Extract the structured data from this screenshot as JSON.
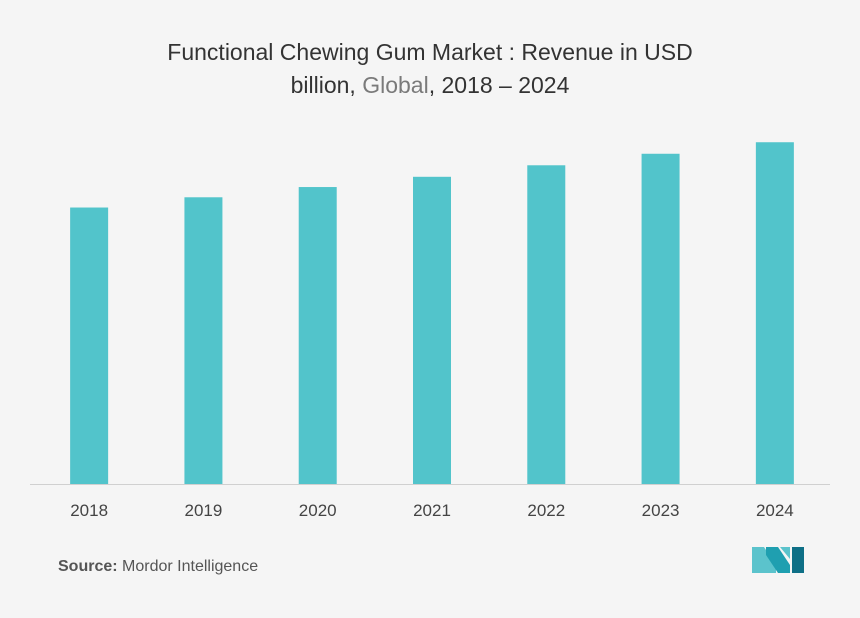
{
  "title": {
    "line1": "Functional Chewing Gum Market : Revenue in USD",
    "line2_part1": "billion, ",
    "line2_part2": "Global",
    "line2_part3": ", 2018 – 2024"
  },
  "source": {
    "label": "Source:",
    "value": "Mordor Intelligence"
  },
  "logo": {
    "icon": "mordor-intelligence-logo-icon",
    "colors": [
      "#5bc3cc",
      "#1f9fb0",
      "#0e6f86"
    ]
  },
  "colors": {
    "bar": "#52c4cb",
    "axis": "#d0d0d0",
    "background": "#f5f5f5"
  },
  "chart_data": {
    "type": "bar",
    "categories": [
      "2018",
      "2019",
      "2020",
      "2021",
      "2022",
      "2023",
      "2024"
    ],
    "values": [
      2.16,
      2.24,
      2.32,
      2.4,
      2.49,
      2.58,
      2.67
    ],
    "ylim": [
      0,
      3.0
    ],
    "title": "Functional Chewing Gum Market : Revenue in USD billion, Global, 2018 – 2024",
    "xlabel": "",
    "ylabel": "",
    "grid": false,
    "legend": "none"
  }
}
